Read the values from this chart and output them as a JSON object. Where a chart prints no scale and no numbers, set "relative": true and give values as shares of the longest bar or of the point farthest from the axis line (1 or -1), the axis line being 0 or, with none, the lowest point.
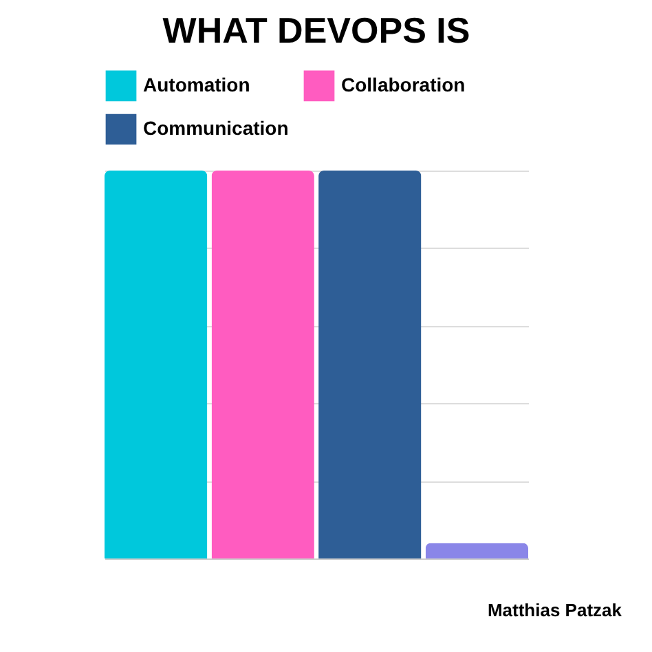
{
  "chart_data": {
    "type": "bar",
    "title": "WHAT DEVOPS IS",
    "categories": [
      null
    ],
    "relative": true,
    "grid": "y",
    "legend": "top",
    "series": [
      {
        "name": "Automation",
        "color": "#00c8dc",
        "values": [
          1
        ]
      },
      {
        "name": "Collaboration",
        "color": "#ff5cc0",
        "values": [
          1
        ]
      },
      {
        "name": "Communication",
        "color": "#2e5e96",
        "values": [
          1
        ]
      },
      {
        "color": "#8a86e8",
        "values": [
          0.04
        ]
      }
    ],
    "annotations": [
      "Matthias Patzak"
    ]
  }
}
